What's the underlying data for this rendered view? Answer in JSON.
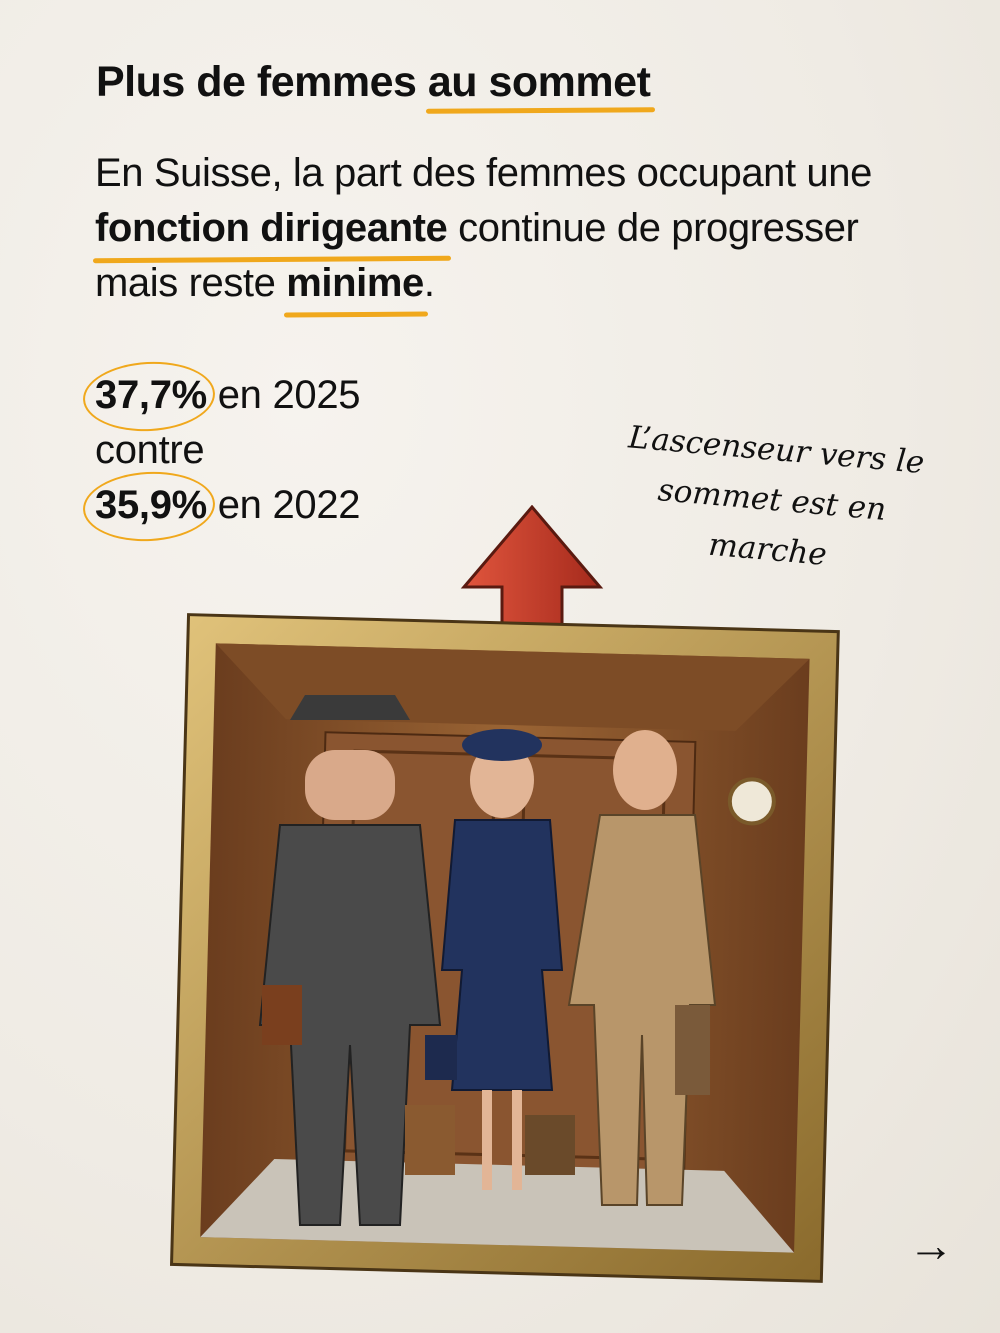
{
  "title": {
    "part1": "Plus de femmes ",
    "highlight": "au sommet"
  },
  "intro": {
    "t1": "En Suisse, la part des femmes occupant une ",
    "b1": "fonction dirigeante",
    "t2": " continue de progresser mais reste ",
    "b2": "minime",
    "t3": "."
  },
  "stats": {
    "value_2025": "37,7%",
    "label_2025": " en 2025",
    "contre": "contre",
    "value_2022": "35,9%",
    "label_2022": " en 2022"
  },
  "note": "L’ascenseur vers le sommet est en marche",
  "illustration": {
    "icon": "elevator-illustration-with-up-arrow"
  },
  "navigation": {
    "next_icon": "arrow-right-icon",
    "next_glyph": "→"
  },
  "colors": {
    "accent": "#f0a81c",
    "arrow": "#c8412e",
    "text": "#111111"
  }
}
